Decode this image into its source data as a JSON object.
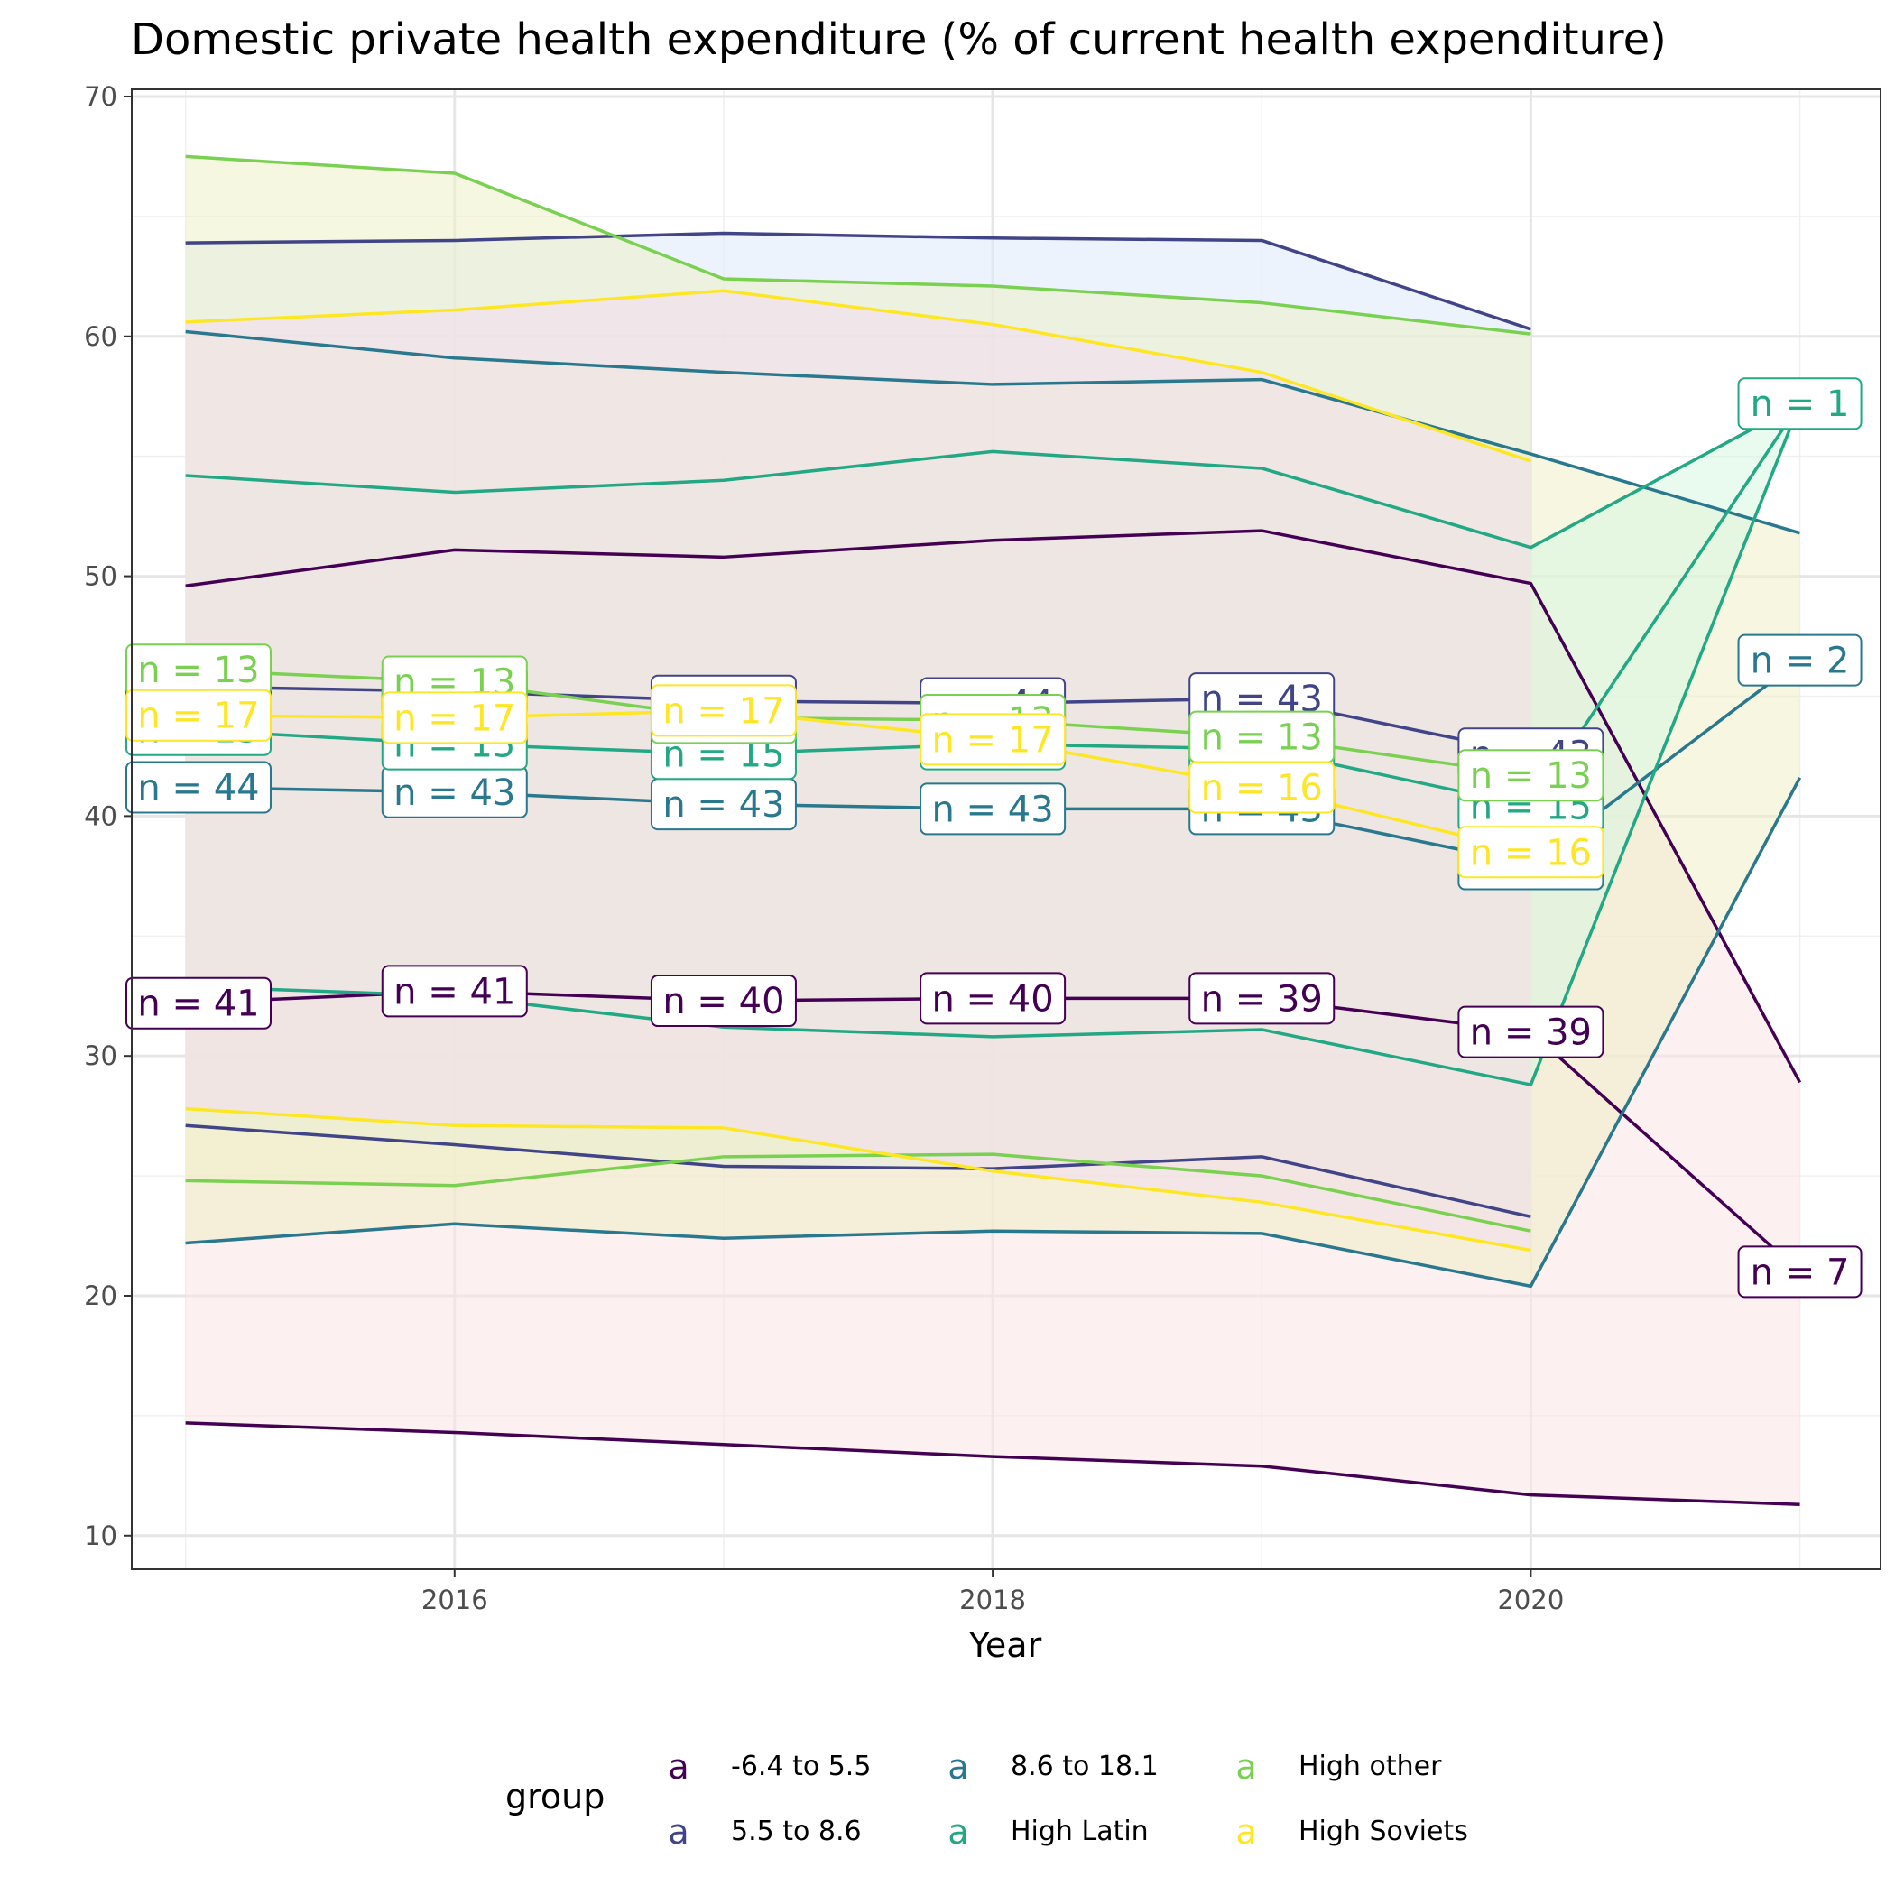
{
  "chart_data": {
    "type": "area",
    "title": "Domestic private health expenditure (% of current health expenditure)",
    "xlabel": "Year",
    "ylabel": "",
    "xlim": [
      2014.8,
      2021.3
    ],
    "ylim": [
      8.6,
      70.3
    ],
    "x_ticks": [
      2016,
      2018,
      2020
    ],
    "y_ticks": [
      10,
      20,
      30,
      40,
      50,
      60,
      70
    ],
    "grid": true,
    "legend": {
      "title": "group",
      "placement": "bottom",
      "key_glyph": "a"
    },
    "series": [
      {
        "name": "-6.4 to 5.5",
        "color": "#440154",
        "x": [
          2015,
          2016,
          2017,
          2018,
          2019,
          2020,
          2021
        ],
        "upper": [
          49.6,
          51.1,
          50.8,
          51.5,
          51.9,
          49.7,
          28.9
        ],
        "median": [
          32.2,
          32.7,
          32.3,
          32.4,
          32.4,
          31.0,
          21.0
        ],
        "lower": [
          14.7,
          14.3,
          13.8,
          13.3,
          12.9,
          11.7,
          11.3
        ],
        "n": [
          41,
          41,
          40,
          40,
          39,
          39,
          7
        ]
      },
      {
        "name": "5.5 to 8.6",
        "color": "#414487",
        "x": [
          2015,
          2016,
          2017,
          2018,
          2019,
          2020
        ],
        "upper": [
          63.9,
          64.0,
          64.3,
          64.1,
          64.0,
          60.3
        ],
        "median": [
          45.4,
          45.2,
          44.8,
          44.7,
          44.9,
          42.6
        ],
        "lower": [
          27.1,
          26.3,
          25.4,
          25.3,
          25.8,
          23.3
        ],
        "n": [
          44,
          44,
          44,
          44,
          43,
          43
        ]
      },
      {
        "name": "8.6 to 18.1",
        "color": "#2A788E",
        "x": [
          2015,
          2016,
          2017,
          2018,
          2019,
          2020,
          2021
        ],
        "upper": [
          60.2,
          59.1,
          58.5,
          58.0,
          58.2,
          55.1,
          51.8
        ],
        "median": [
          41.2,
          41.0,
          40.5,
          40.3,
          40.3,
          38.0,
          46.5
        ],
        "lower": [
          22.2,
          23.0,
          22.4,
          22.7,
          22.6,
          20.4,
          41.6
        ],
        "n": [
          44,
          43,
          43,
          43,
          43,
          42,
          2
        ]
      },
      {
        "name": "High Latin",
        "color": "#22A884",
        "x": [
          2015,
          2016,
          2017,
          2018,
          2019,
          2020,
          2021
        ],
        "upper": [
          54.2,
          53.5,
          54.0,
          55.2,
          54.5,
          51.2,
          57.2
        ],
        "median": [
          43.6,
          43.0,
          42.6,
          43.0,
          42.8,
          40.4,
          57.2
        ],
        "lower": [
          32.9,
          32.5,
          31.2,
          30.8,
          31.1,
          28.8,
          57.2
        ],
        "n": [
          15,
          15,
          15,
          15,
          15,
          15,
          1
        ]
      },
      {
        "name": "High other",
        "color": "#7AD151",
        "x": [
          2015,
          2016,
          2017,
          2018,
          2019,
          2020
        ],
        "upper": [
          67.5,
          66.8,
          62.4,
          62.1,
          61.4,
          60.1
        ],
        "median": [
          46.1,
          45.6,
          44.1,
          44.0,
          43.3,
          41.7
        ],
        "lower": [
          24.8,
          24.6,
          25.8,
          25.9,
          25.0,
          22.7
        ],
        "n": [
          13,
          13,
          13,
          13,
          13,
          13
        ]
      },
      {
        "name": "High Soviets",
        "color": "#FDE725",
        "x": [
          2015,
          2016,
          2017,
          2018,
          2019,
          2020
        ],
        "upper": [
          60.6,
          61.1,
          61.9,
          60.5,
          58.5,
          54.8
        ],
        "median": [
          44.2,
          44.1,
          44.4,
          43.2,
          41.2,
          38.5
        ],
        "lower": [
          27.8,
          27.1,
          27.0,
          25.2,
          23.9,
          21.9
        ],
        "n": [
          17,
          17,
          17,
          17,
          16,
          16
        ]
      }
    ],
    "ribbon_fills": [
      "#FBE3E3",
      "#DDE9FA",
      "#EEEFC8",
      "#D7F5E2",
      "#EEF0C8",
      "#F2DDF1"
    ]
  }
}
